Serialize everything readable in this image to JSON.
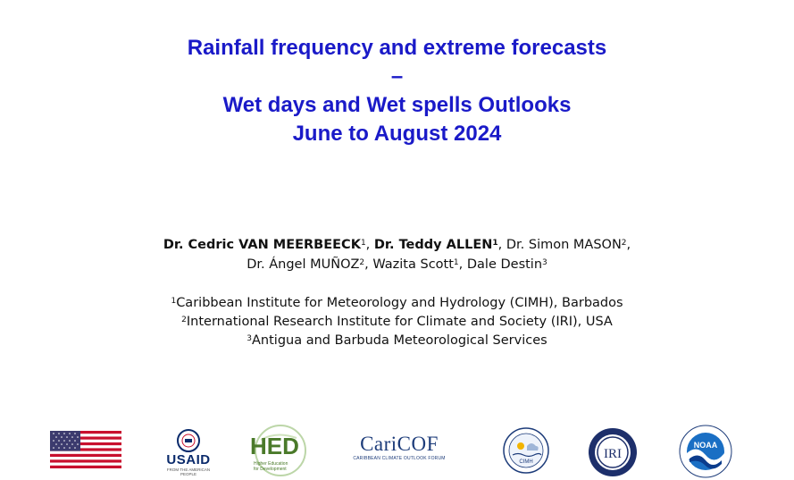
{
  "title": {
    "line1": "Rainfall frequency and extreme forecasts",
    "line2": "–",
    "line3": "Wet days and Wet spells Outlooks",
    "line4": "June to August 2024"
  },
  "authors": {
    "a1_name": "Dr. Cedric VAN MEERBEECK",
    "a1_sup": "1",
    "sep1": ", ",
    "a2_name": "Dr. Teddy ALLEN",
    "a2_sup": "1",
    "sep2": ", ",
    "a3_name": "Dr. Simon MASON",
    "a3_sup": "2",
    "sep3": ",",
    "a4_name": "Dr. Ángel MUÑOZ",
    "a4_sup": "2",
    "sep4": ", ",
    "a5_name": "Wazita Scott",
    "a5_sup": "1",
    "sep5": ", ",
    "a6_name": "Dale Destin",
    "a6_sup": "3"
  },
  "affiliations": [
    {
      "sup": "1",
      "text": "Caribbean Institute for Meteorology and Hydrology (CIMH), Barbados"
    },
    {
      "sup": "2",
      "text": "International Research Institute for Climate and Society (IRI), USA"
    },
    {
      "sup": "3",
      "text": "Antigua and Barbuda Meteorological Services"
    }
  ],
  "logos": {
    "usaid": {
      "name": "USAID",
      "tagline": "FROM THE AMERICAN PEOPLE"
    },
    "hed": {
      "name": "HED",
      "sub1": "Higher Education",
      "sub2": "for Development"
    },
    "caricof": {
      "name": "CariCOF",
      "sub": "CARIBBEAN CLIMATE OUTLOOK FORUM"
    },
    "cimh": {
      "name": "CIMH"
    },
    "iri": {
      "name": "IRI"
    },
    "noaa": {
      "name": "NOAA"
    }
  },
  "colors": {
    "title": "#1a1ac8",
    "text": "#111111"
  }
}
